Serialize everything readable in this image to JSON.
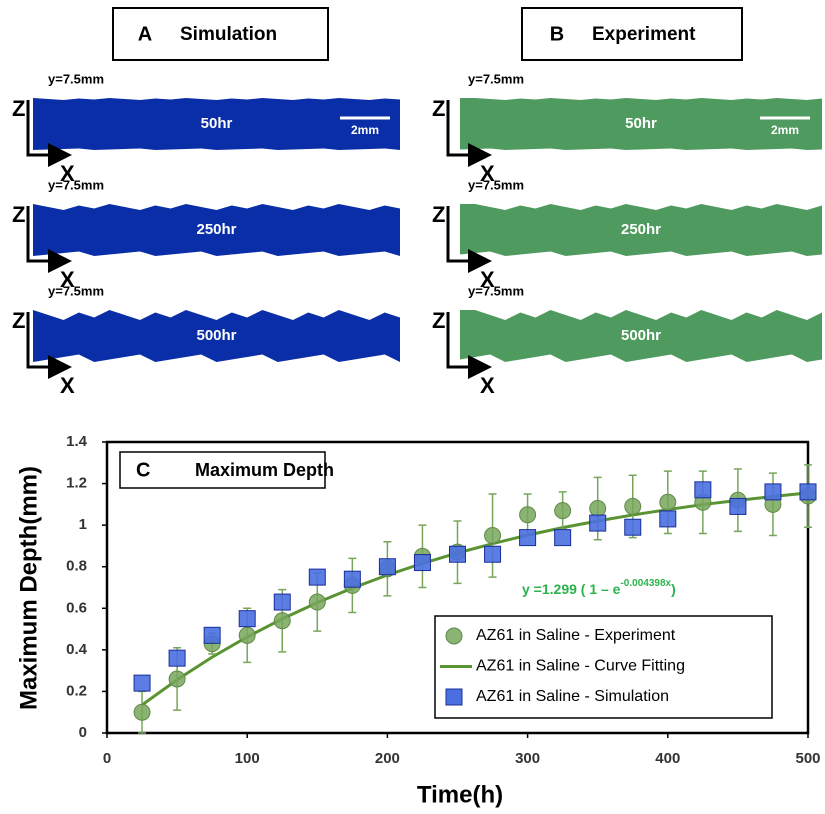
{
  "panels": [
    {
      "label": "A",
      "title": "Simulation",
      "color": "#0a2ea8",
      "rows": [
        {
          "depth": "y=7.5mm",
          "time": "50hr"
        },
        {
          "depth": "y=7.5mm",
          "time": "250hr"
        },
        {
          "depth": "y=7.5mm",
          "time": "500hr"
        }
      ],
      "scale": "2mm",
      "axis_z": "Z",
      "axis_x": "X"
    },
    {
      "label": "B",
      "title": "Experiment",
      "color": "#4f9a5e",
      "rows": [
        {
          "depth": "y=7.5mm",
          "time": "50hr"
        },
        {
          "depth": "y=7.5mm",
          "time": "250hr"
        },
        {
          "depth": "y=7.5mm",
          "time": "500hr"
        }
      ],
      "scale": "2mm",
      "axis_z": "Z",
      "axis_x": "X"
    }
  ],
  "chart_data": {
    "type": "scatter",
    "panel_label": "C",
    "title": "Maximum Depth",
    "x_label": "Time(h)",
    "y_label": "Maximum Depth(mm)",
    "annotation": {
      "text": "y =1.299 ( 1 – e",
      "superscript": "-0.004398x",
      "closing": ")"
    },
    "x": [
      25,
      50,
      75,
      100,
      125,
      150,
      175,
      200,
      225,
      250,
      275,
      300,
      325,
      350,
      375,
      400,
      425,
      450,
      475,
      500
    ],
    "series": [
      {
        "name": "AZ61 in Saline - Experiment",
        "kind": "circle",
        "color": "#77a65a",
        "values": [
          0.1,
          0.26,
          0.43,
          0.47,
          0.54,
          0.63,
          0.71,
          0.79,
          0.85,
          0.87,
          0.95,
          1.05,
          1.07,
          1.08,
          1.09,
          1.11,
          1.11,
          1.12,
          1.1,
          1.14
        ],
        "errors": [
          0.1,
          0.15,
          0.05,
          0.13,
          0.15,
          0.14,
          0.13,
          0.13,
          0.15,
          0.15,
          0.2,
          0.1,
          0.09,
          0.15,
          0.15,
          0.15,
          0.15,
          0.15,
          0.15,
          0.15
        ]
      },
      {
        "name": "AZ61 in Saline - Curve Fitting",
        "kind": "line",
        "color": "#5a9432",
        "values": [
          0.135,
          0.256,
          0.365,
          0.462,
          0.549,
          0.627,
          0.697,
          0.76,
          0.816,
          0.866,
          0.911,
          0.952,
          0.988,
          1.02,
          1.049,
          1.075,
          1.099,
          1.119,
          1.138,
          1.155
        ]
      },
      {
        "name": "AZ61 in Saline - Simulation",
        "kind": "square",
        "color": "#4a6fe0",
        "values": [
          0.24,
          0.36,
          0.47,
          0.55,
          0.63,
          0.75,
          0.74,
          0.8,
          0.82,
          0.86,
          0.86,
          0.94,
          0.94,
          1.01,
          0.99,
          1.03,
          1.17,
          1.09,
          1.16,
          1.16
        ]
      }
    ],
    "xlim": [
      0,
      500
    ],
    "xticks": [
      0,
      100,
      200,
      300,
      400,
      500
    ],
    "ylim": [
      0,
      1.4
    ],
    "yticks": [
      0,
      0.2,
      0.4,
      0.6,
      0.8,
      1,
      1.2,
      1.4
    ]
  }
}
